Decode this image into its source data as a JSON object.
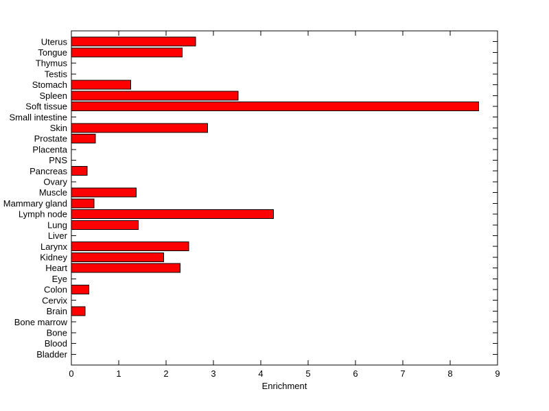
{
  "chart_data": {
    "type": "bar",
    "orientation": "horizontal",
    "categories": [
      "Uterus",
      "Tongue",
      "Thymus",
      "Testis",
      "Stomach",
      "Spleen",
      "Soft tissue",
      "Small intestine",
      "Skin",
      "Prostate",
      "Placenta",
      "PNS",
      "Pancreas",
      "Ovary",
      "Muscle",
      "Mammary gland",
      "Lymph node",
      "Lung",
      "Liver",
      "Larynx",
      "Kidney",
      "Heart",
      "Eye",
      "Colon",
      "Cervix",
      "Brain",
      "Bone marrow",
      "Bone",
      "Blood",
      "Bladder"
    ],
    "values": [
      2.62,
      2.34,
      0,
      0,
      1.25,
      3.52,
      8.6,
      0,
      2.88,
      0.51,
      0,
      0,
      0.33,
      0,
      1.37,
      0.48,
      4.27,
      1.41,
      0,
      2.48,
      1.95,
      2.3,
      0,
      0.37,
      0,
      0.29,
      0,
      0,
      0,
      0
    ],
    "title": "",
    "xlabel": "Enrichment",
    "ylabel": "",
    "xlim": [
      0,
      9
    ],
    "xticks": [
      0,
      1,
      2,
      3,
      4,
      5,
      6,
      7,
      8,
      9
    ],
    "grid": false,
    "legend": null,
    "bar_color": "#ff0000",
    "bar_edge_color": "#000000",
    "axis_color": "#000000"
  }
}
